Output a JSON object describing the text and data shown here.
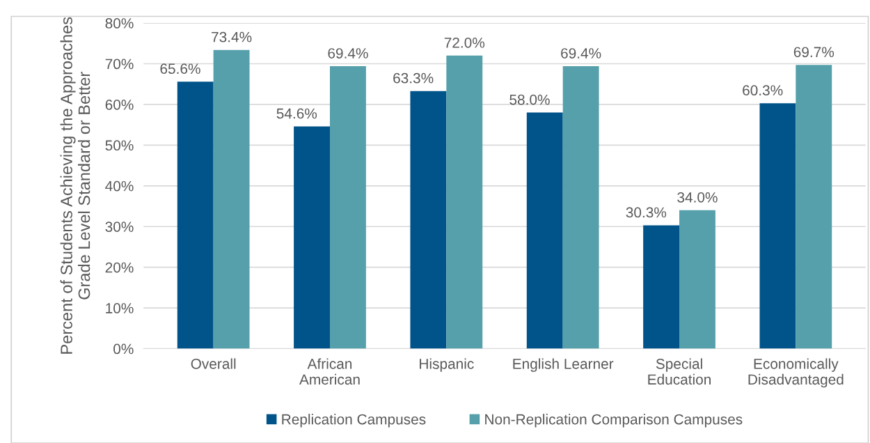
{
  "chart_data": {
    "type": "bar",
    "ylabel": "Percent of Students Achieving the Approaches Grade Level Standard or Better",
    "categories": [
      "Overall",
      "African\nAmerican",
      "Hispanic",
      "English Learner",
      "Special\nEducation",
      "Economically\nDisadvantaged"
    ],
    "series": [
      {
        "name": "Replication Campuses",
        "color": "#00548a",
        "values": [
          65.6,
          54.6,
          63.3,
          58.0,
          30.3,
          60.3
        ],
        "value_labels": [
          "65.6%",
          "54.6%",
          "63.3%",
          "58.0%",
          "30.3%",
          "60.3%"
        ]
      },
      {
        "name": "Non-Replication Comparison Campuses",
        "color": "#55a0aa",
        "values": [
          73.4,
          69.4,
          72.0,
          69.4,
          34.0,
          69.7
        ],
        "value_labels": [
          "73.4%",
          "69.4%",
          "72.0%",
          "69.4%",
          "34.0%",
          "69.7%"
        ]
      }
    ],
    "ylim": [
      0,
      80
    ],
    "yticks": [
      {
        "value": 0,
        "label": "0%"
      },
      {
        "value": 10,
        "label": "10%"
      },
      {
        "value": 20,
        "label": "20%"
      },
      {
        "value": 30,
        "label": "30%"
      },
      {
        "value": 40,
        "label": "40%"
      },
      {
        "value": 50,
        "label": "50%"
      },
      {
        "value": 60,
        "label": "60%"
      },
      {
        "value": 70,
        "label": "70%"
      },
      {
        "value": 80,
        "label": "80%"
      }
    ],
    "grid": "y",
    "legend": "bottom"
  }
}
